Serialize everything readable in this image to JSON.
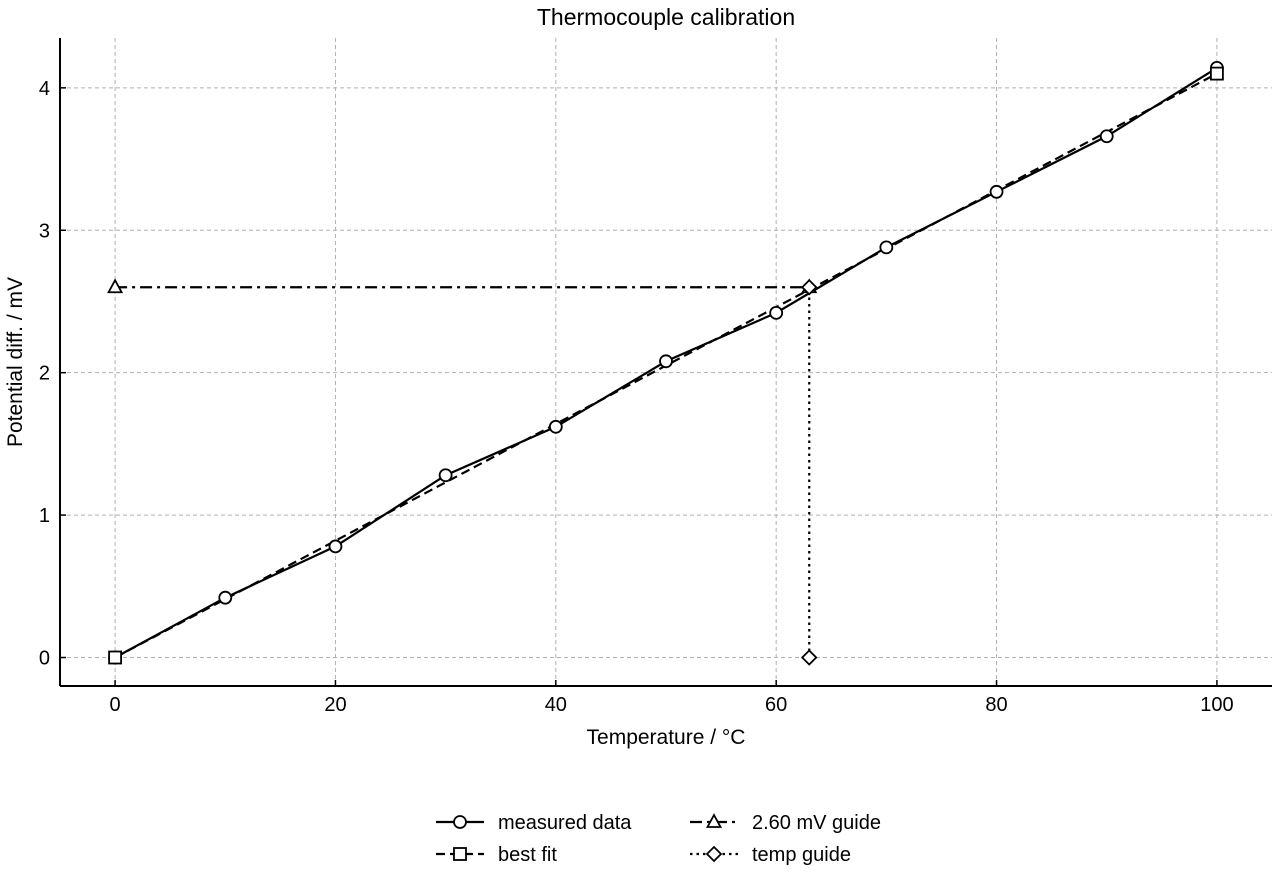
{
  "chart_data": {
    "type": "line",
    "title": "Thermocouple calibration",
    "xlabel": "Temperature / °C",
    "ylabel": "Potential diff. / mV",
    "xlim": [
      -5,
      105
    ],
    "ylim": [
      -0.2,
      4.35
    ],
    "xticks": [
      0,
      20,
      40,
      60,
      80,
      100
    ],
    "yticks": [
      0,
      1,
      2,
      3,
      4
    ],
    "grid": true,
    "legend_position": "bottom-center",
    "series": [
      {
        "name": "measured data",
        "line": "solid",
        "marker": "circle",
        "x": [
          0,
          10,
          20,
          30,
          40,
          50,
          60,
          70,
          80,
          90,
          100
        ],
        "y": [
          0.0,
          0.42,
          0.78,
          1.28,
          1.62,
          2.08,
          2.42,
          2.88,
          3.27,
          3.66,
          4.14
        ],
        "marker_every": [
          0,
          1,
          2,
          3,
          4,
          5,
          6,
          7,
          8,
          9,
          10
        ]
      },
      {
        "name": "best fit",
        "line": "dashed",
        "marker": "square",
        "x": [
          0,
          10,
          20,
          30,
          40,
          50,
          60,
          70,
          80,
          90,
          100
        ],
        "y": [
          0.0,
          0.41,
          0.82,
          1.23,
          1.64,
          2.05,
          2.46,
          2.87,
          3.28,
          3.69,
          4.1
        ],
        "marker_every": [
          0,
          10
        ]
      },
      {
        "name": "2.60 mV guide",
        "line": "dashdot",
        "marker": "triangle",
        "x": [
          0,
          63
        ],
        "y": [
          2.6,
          2.6
        ],
        "marker_every": [
          0,
          1
        ]
      },
      {
        "name": "temp guide",
        "line": "dotted",
        "marker": "diamond",
        "x": [
          63,
          63
        ],
        "y": [
          0,
          2.6
        ],
        "marker_every": [
          0,
          1
        ]
      }
    ]
  }
}
